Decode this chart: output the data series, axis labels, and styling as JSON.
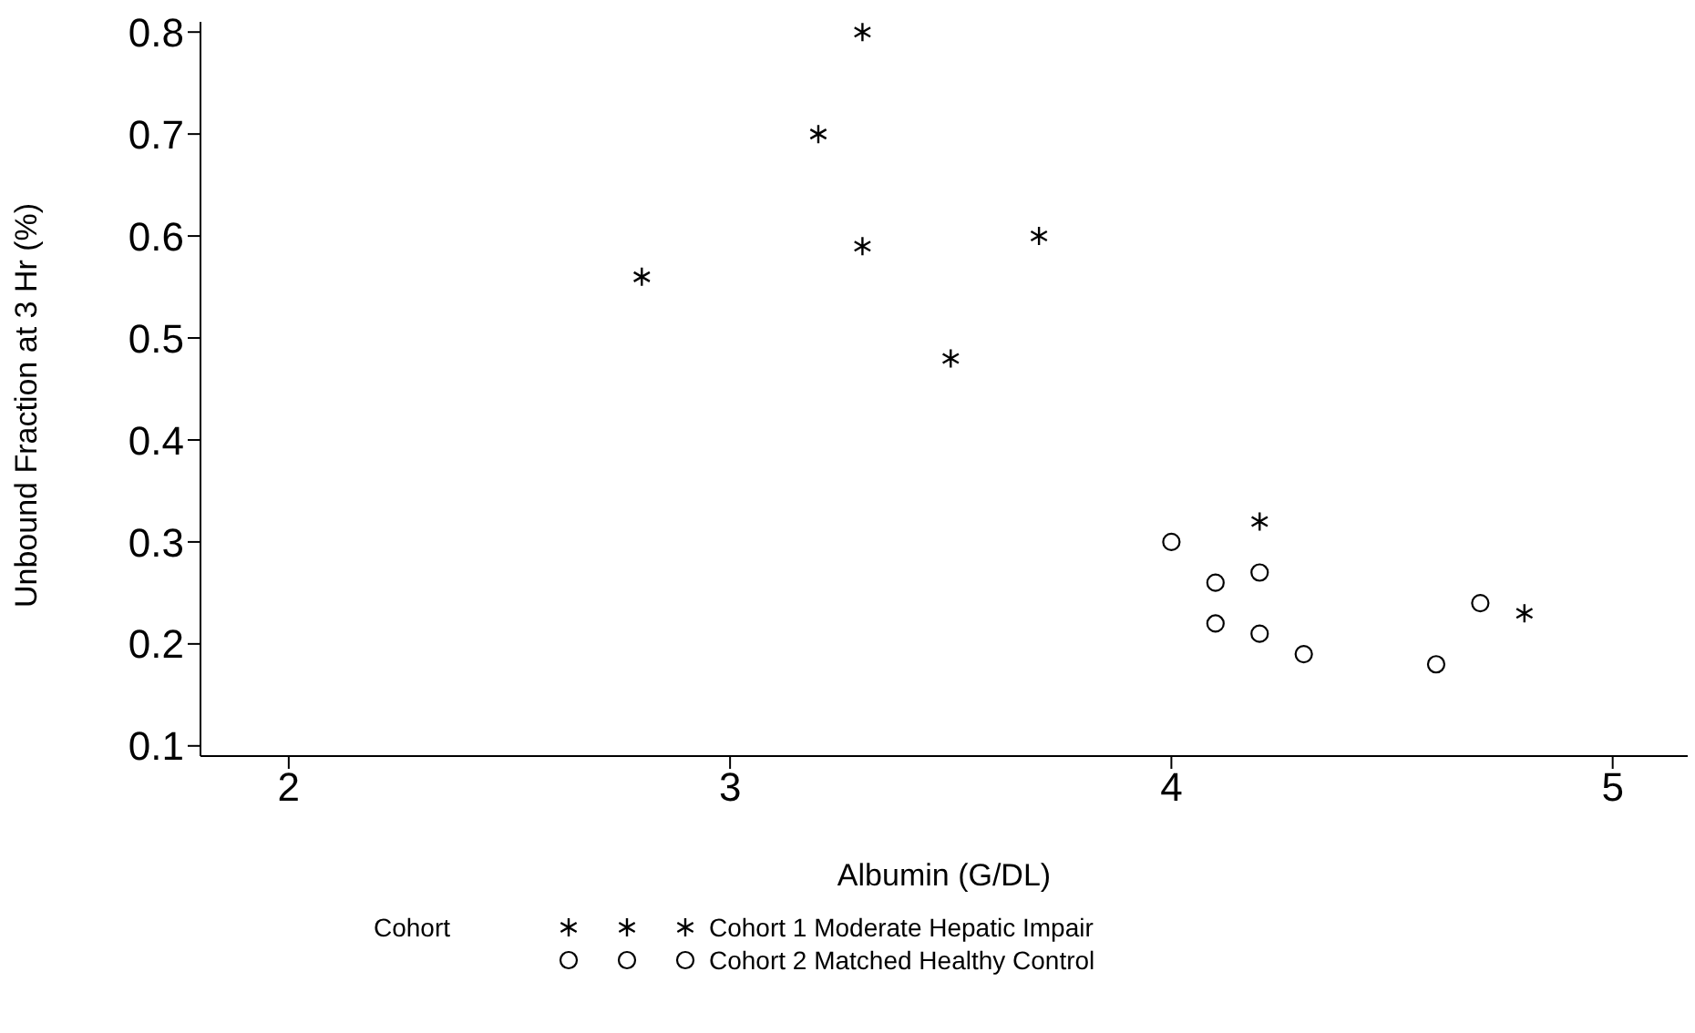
{
  "chart_data": {
    "type": "scatter",
    "xlabel": "Albumin (G/DL)",
    "ylabel": "Unbound Fraction at 3 Hr (%)",
    "legend_title": "Cohort",
    "legend": "bottom",
    "grid": false,
    "xlim": [
      1.8,
      5.17
    ],
    "xticks": [
      2,
      3,
      4,
      5
    ],
    "ylim": [
      0.09,
      0.81
    ],
    "yticks": [
      0.1,
      0.2,
      0.3,
      0.4,
      0.5,
      0.6,
      0.7,
      0.8
    ],
    "series": [
      {
        "name": "Cohort 1 Moderate Hepatic Impair",
        "color": "#000000",
        "marker": "cross",
        "x": [
          2.8,
          3.2,
          3.3,
          3.3,
          3.5,
          3.7,
          4.2,
          4.8
        ],
        "values": [
          0.56,
          0.7,
          0.8,
          0.59,
          0.48,
          0.6,
          0.32,
          0.23
        ]
      },
      {
        "name": "Cohort 2 Matched Healthy Control",
        "color": "#000000",
        "marker": "circle",
        "x": [
          4.0,
          4.1,
          4.1,
          4.2,
          4.2,
          4.3,
          4.6,
          4.7
        ],
        "values": [
          0.3,
          0.26,
          0.22,
          0.27,
          0.21,
          0.19,
          0.18,
          0.24
        ]
      }
    ]
  }
}
